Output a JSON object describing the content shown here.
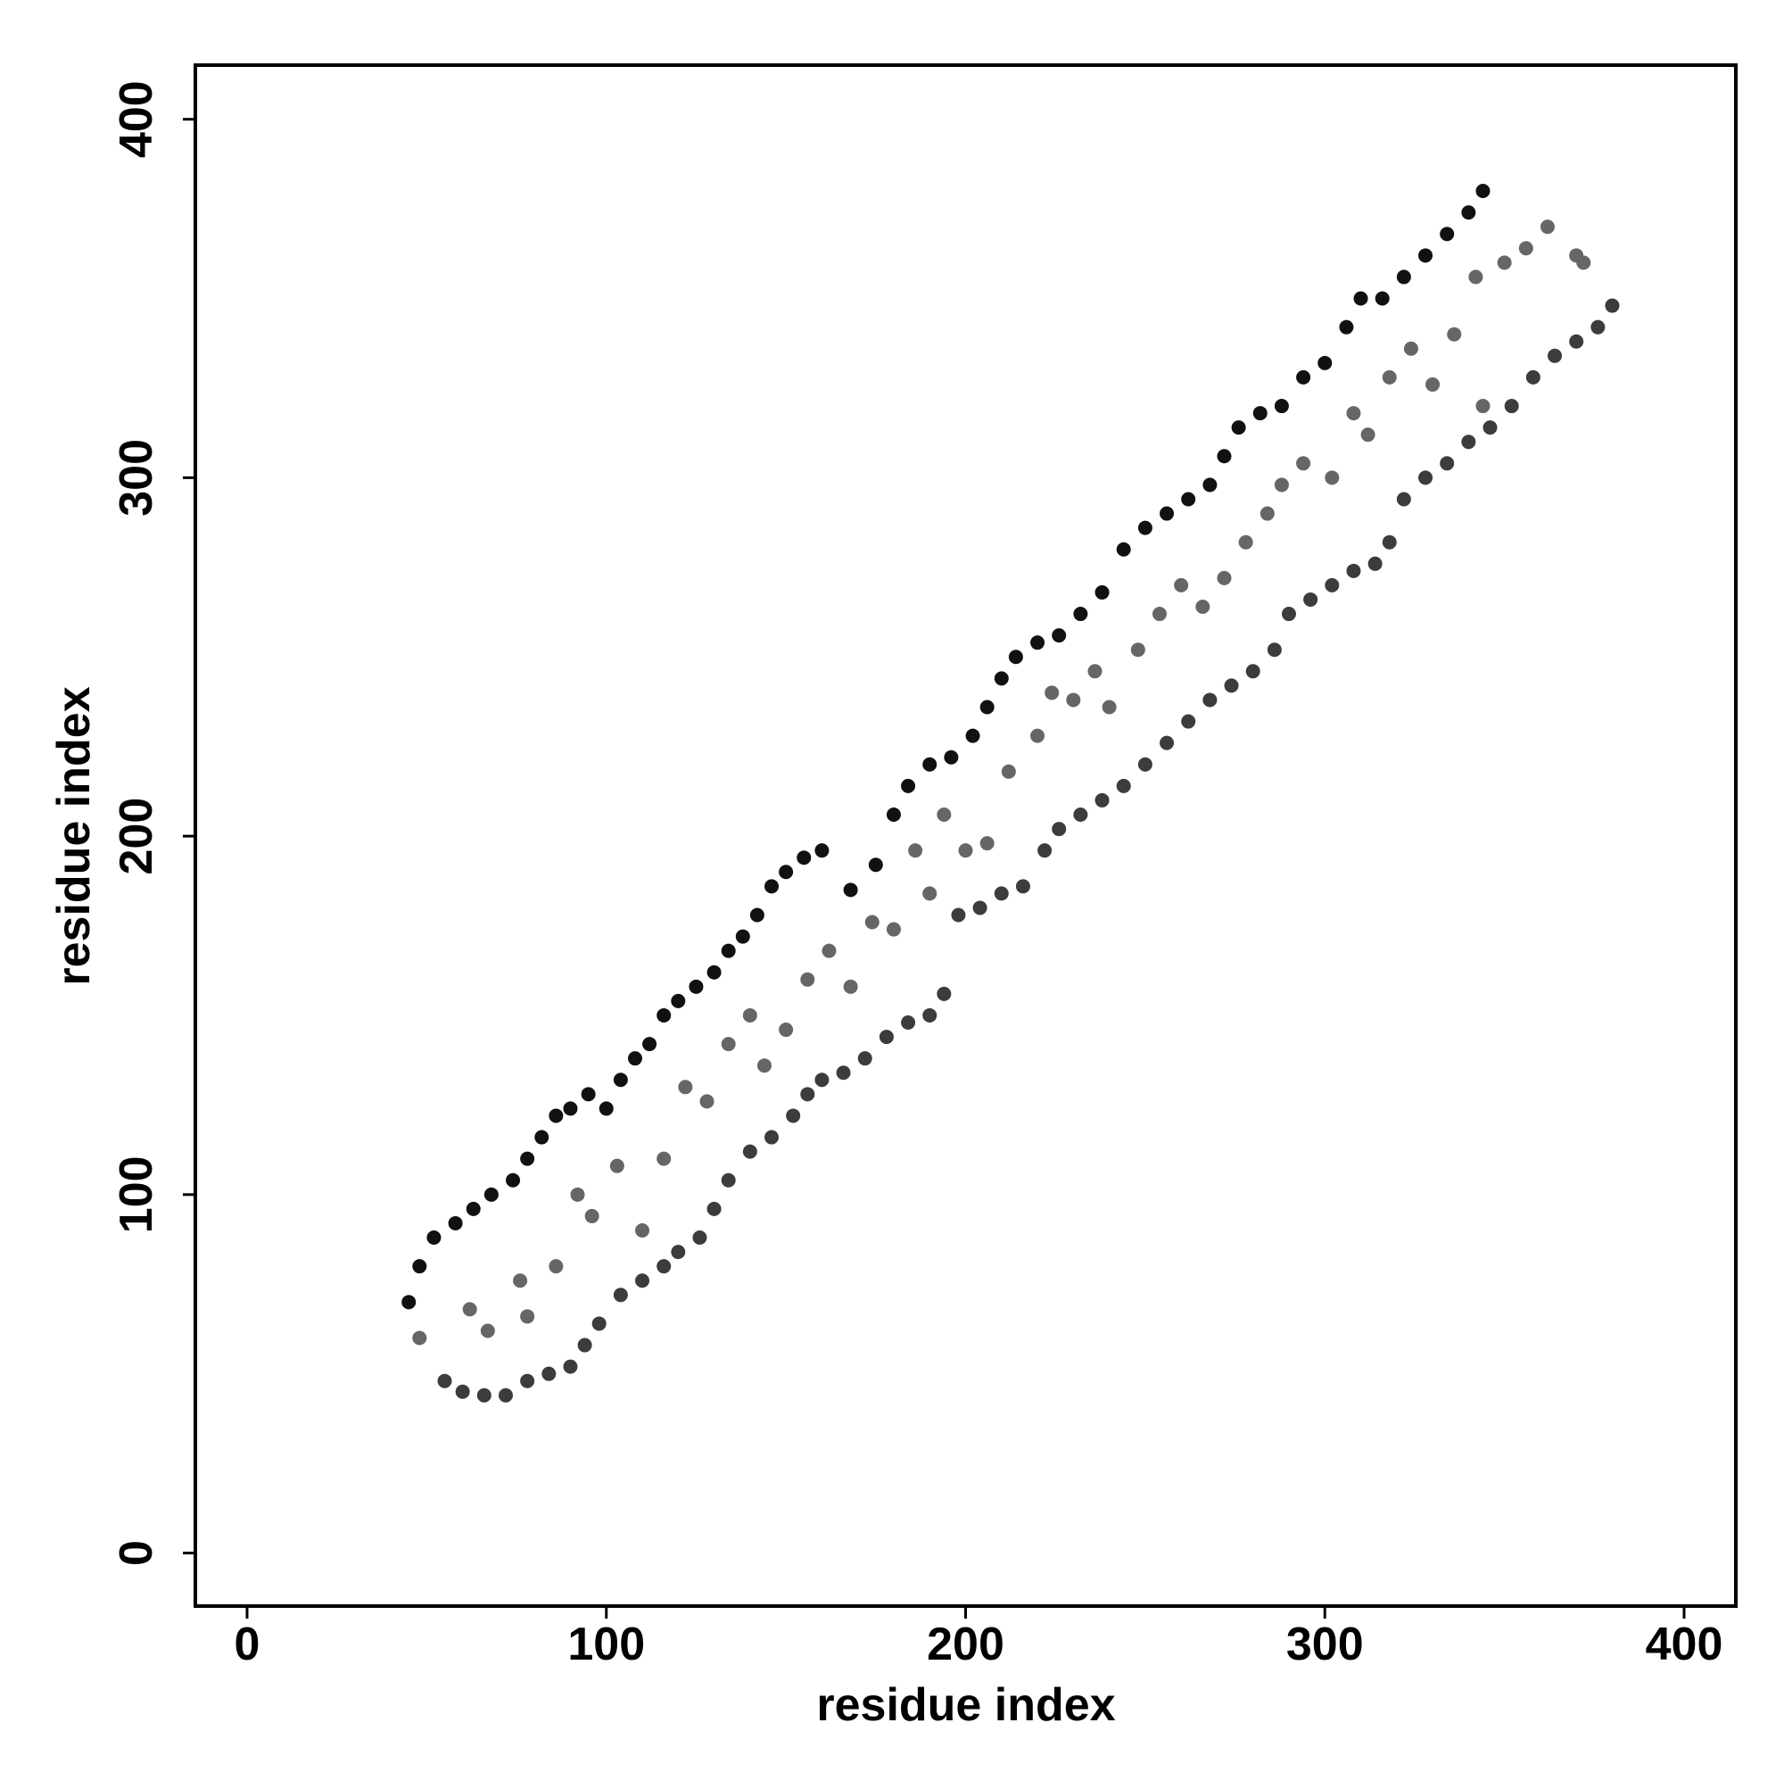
{
  "chart_data": {
    "type": "scatter",
    "xlabel": "residue index",
    "ylabel": "residue index",
    "xlim": [
      -14.4,
      414.4
    ],
    "ylim": [
      -14.8,
      415.1
    ],
    "xticks": [
      0,
      100,
      200,
      300,
      400
    ],
    "yticks": [
      0,
      100,
      200,
      300,
      400
    ],
    "grid": false,
    "series": [
      {
        "color": "#111111",
        "x": [
          45,
          48,
          52,
          58,
          63,
          68,
          74,
          78,
          82,
          86,
          90,
          95,
          100,
          104,
          108,
          112,
          116,
          120,
          125,
          130,
          134,
          138,
          142,
          146,
          150,
          155,
          160,
          168,
          175,
          180,
          184,
          190,
          196,
          202,
          206,
          210,
          214,
          220,
          226,
          232,
          238,
          244,
          250,
          256,
          262,
          268,
          272,
          276,
          282,
          288,
          294,
          300,
          306,
          310,
          316,
          322,
          328,
          334,
          340,
          344
        ],
        "values": [
          70,
          80,
          88,
          92,
          96,
          100,
          104,
          110,
          116,
          122,
          124,
          128,
          124,
          132,
          138,
          142,
          150,
          154,
          158,
          162,
          168,
          172,
          178,
          186,
          190,
          194,
          196,
          185,
          192,
          206,
          214,
          220,
          222,
          228,
          236,
          244,
          250,
          254,
          256,
          262,
          268,
          280,
          286,
          290,
          294,
          298,
          306,
          314,
          318,
          320,
          328,
          332,
          342,
          350,
          350,
          356,
          362,
          368,
          374,
          380
        ]
      },
      {
        "color": "#3c3c3c",
        "x": [
          55,
          60,
          66,
          72,
          78,
          84,
          90,
          94,
          98,
          104,
          110,
          116,
          120,
          126,
          130,
          134,
          140,
          146,
          152,
          156,
          160,
          166,
          172,
          178,
          184,
          190,
          194,
          198,
          204,
          210,
          216,
          222,
          226,
          232,
          238,
          244,
          250,
          256,
          262,
          268,
          274,
          280,
          286,
          290,
          296,
          302,
          308,
          314,
          318,
          322,
          328,
          334,
          340,
          346,
          352,
          358,
          364,
          370,
          376,
          380
        ],
        "values": [
          48,
          45,
          44,
          44,
          48,
          50,
          52,
          58,
          64,
          72,
          76,
          80,
          84,
          88,
          96,
          104,
          112,
          116,
          122,
          128,
          132,
          134,
          138,
          144,
          148,
          150,
          156,
          178,
          180,
          184,
          186,
          196,
          202,
          206,
          210,
          214,
          220,
          226,
          232,
          238,
          242,
          246,
          252,
          262,
          266,
          270,
          274,
          276,
          282,
          294,
          300,
          304,
          310,
          314,
          320,
          328,
          334,
          338,
          342,
          348
        ]
      },
      {
        "color": "#666666",
        "x": [
          48,
          62,
          67,
          76,
          78,
          86,
          92,
          96,
          103,
          110,
          116,
          122,
          128,
          134,
          140,
          144,
          150,
          156,
          162,
          168,
          174,
          180,
          186,
          190,
          194,
          200,
          206,
          212,
          220,
          224,
          230,
          236,
          240,
          248,
          254,
          260,
          266,
          272,
          278,
          284,
          288,
          294,
          302,
          308,
          312,
          318,
          324,
          330,
          336,
          342,
          350,
          356,
          362,
          370,
          372,
          344
        ],
        "values": [
          60,
          68,
          62,
          76,
          66,
          80,
          100,
          94,
          108,
          90,
          110,
          130,
          126,
          142,
          150,
          136,
          146,
          160,
          168,
          158,
          176,
          174,
          196,
          184,
          206,
          196,
          198,
          218,
          228,
          240,
          238,
          246,
          236,
          252,
          262,
          270,
          264,
          272,
          282,
          290,
          298,
          304,
          300,
          318,
          312,
          328,
          336,
          326,
          340,
          356,
          360,
          364,
          370,
          362,
          360,
          320
        ]
      }
    ]
  }
}
